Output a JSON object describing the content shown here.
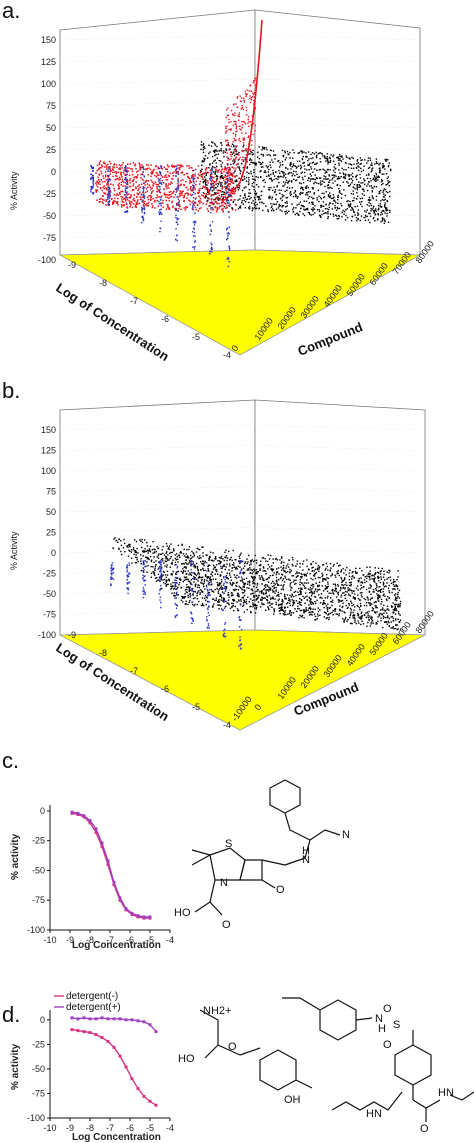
{
  "panels": {
    "a": {
      "label": "a.",
      "ylabel": "% Activity",
      "yticks": [
        "150",
        "125",
        "100",
        "75",
        "50",
        "25",
        "0",
        "-25",
        "-50",
        "-75",
        "-100"
      ],
      "xlabel": "Log of Concentration",
      "xticks": [
        "-9",
        "-8",
        "-7",
        "-6",
        "-5",
        "-4"
      ],
      "zlabel": "Compound",
      "zticks": [
        "0",
        "10000",
        "20000",
        "30000",
        "40000",
        "50000",
        "60000",
        "70000",
        "80000"
      ]
    },
    "b": {
      "label": "b.",
      "ylabel": "% Activity",
      "yticks": [
        "150",
        "125",
        "100",
        "75",
        "50",
        "25",
        "0",
        "-25",
        "-50",
        "-75",
        "-100"
      ],
      "xlabel": "Log of Concentration",
      "xticks": [
        "-9",
        "-8",
        "-7",
        "-6",
        "-5",
        "-4"
      ],
      "zlabel": "Compound",
      "zticks": [
        "-10000",
        "0",
        "10000",
        "20000",
        "30000",
        "40000",
        "50000",
        "60000",
        "80000"
      ]
    },
    "c": {
      "label": "c.",
      "ylabel": "% activity",
      "xlabel": "Log Concentration",
      "yticks": [
        "0",
        "-25",
        "-50",
        "-75",
        "-100"
      ],
      "xticks": [
        "-10",
        "-9",
        "-8",
        "-7",
        "-6",
        "-5",
        "-4"
      ]
    },
    "d": {
      "label": "d.",
      "ylabel": "% activity",
      "xlabel": "Log Concentration",
      "yticks": [
        "0",
        "-25",
        "-50",
        "-75",
        "-100"
      ],
      "xticks": [
        "-10",
        "-9",
        "-8",
        "-7",
        "-6",
        "-5",
        "-4"
      ],
      "legend": [
        "detergent(-)",
        "detergent(+)"
      ]
    }
  },
  "chem": {
    "c_atoms": [
      "S",
      "N",
      "N",
      "H",
      "O",
      "O",
      "HO",
      "N"
    ],
    "d_atoms": [
      "NH2+",
      "HO",
      "O",
      "OH",
      "N",
      "H",
      "S",
      "O",
      "O",
      "HN",
      "O",
      "HN"
    ]
  },
  "colors": {
    "floor": "#ffff00",
    "red_series": "#e8141e",
    "blue_series": "#2832c8",
    "black_series": "#000000",
    "curve": "#d63384",
    "curve2": "#a040c0"
  },
  "chart_data": [
    {
      "type": "scatter",
      "panel": "c",
      "xlabel": "Log Concentration",
      "ylabel": "% activity",
      "xlim": [
        -10,
        -4
      ],
      "ylim": [
        -100,
        5
      ],
      "series": [
        {
          "x": [
            -8.9,
            -8.6,
            -8.3,
            -8.0,
            -7.7,
            -7.4,
            -7.1,
            -6.8,
            -6.5,
            -6.2,
            -5.9,
            -5.6,
            -5.3,
            -5.0
          ],
          "y": [
            -2,
            -3,
            -5,
            -10,
            -18,
            -30,
            -45,
            -62,
            -75,
            -83,
            -87,
            -89,
            -90,
            -90
          ]
        },
        {
          "x": [
            -8.9,
            -8.6,
            -8.3,
            -8.0,
            -7.7,
            -7.4,
            -7.1,
            -6.8,
            -6.5,
            -6.2,
            -5.9,
            -5.6,
            -5.3,
            -5.0
          ],
          "y": [
            -1,
            -2,
            -4,
            -8,
            -15,
            -27,
            -42,
            -60,
            -73,
            -82,
            -86,
            -88,
            -89,
            -89
          ]
        }
      ]
    },
    {
      "type": "scatter",
      "panel": "d",
      "xlabel": "Log Concentration",
      "ylabel": "% activity",
      "xlim": [
        -10,
        -4
      ],
      "ylim": [
        -100,
        10
      ],
      "series": [
        {
          "name": "detergent(-)",
          "x": [
            -8.9,
            -8.6,
            -8.3,
            -8.0,
            -7.7,
            -7.4,
            -7.1,
            -6.8,
            -6.5,
            -6.2,
            -5.9,
            -5.6,
            -5.3,
            -5.0,
            -4.7
          ],
          "y": [
            -10,
            -11,
            -12,
            -13,
            -15,
            -18,
            -22,
            -28,
            -37,
            -48,
            -60,
            -70,
            -78,
            -83,
            -87
          ]
        },
        {
          "name": "detergent(+)",
          "x": [
            -8.9,
            -8.6,
            -8.3,
            -8.0,
            -7.7,
            -7.4,
            -7.1,
            -6.8,
            -6.5,
            -6.2,
            -5.9,
            -5.6,
            -5.3,
            -5.0,
            -4.7
          ],
          "y": [
            2,
            1,
            2,
            1,
            1,
            2,
            1,
            1,
            1,
            0,
            0,
            -1,
            -2,
            -5,
            -12
          ]
        }
      ]
    }
  ]
}
